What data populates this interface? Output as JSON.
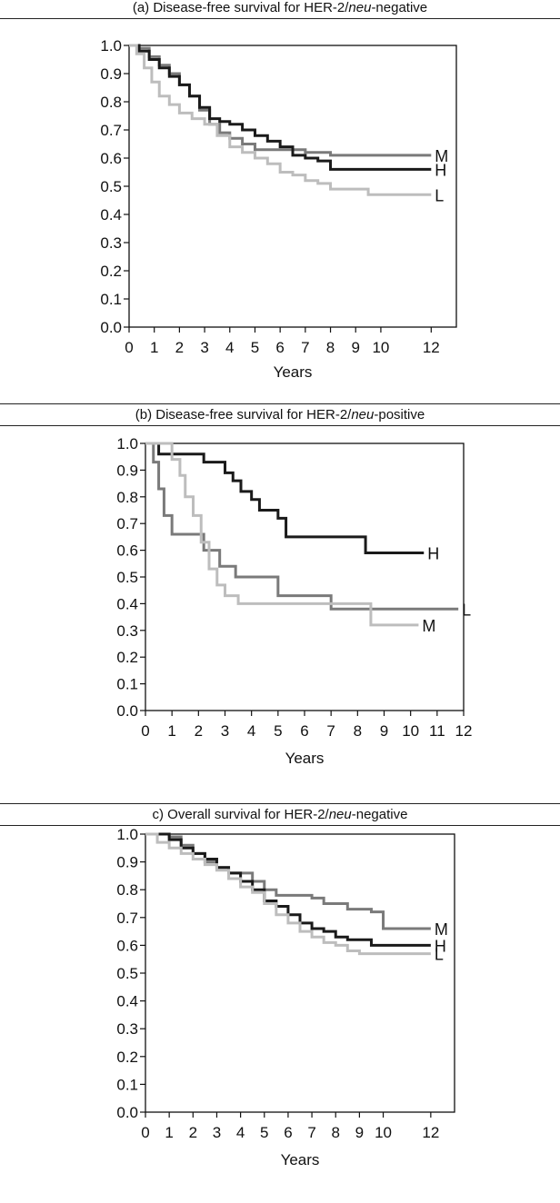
{
  "panels": [
    {
      "title_prefix": "(a) Disease-free survival for HER-2/",
      "title_italic": "neu",
      "title_suffix": "-negative"
    },
    {
      "title_prefix": "(b) Disease-free survival for HER-2/",
      "title_italic": "neu",
      "title_suffix": "-positive"
    },
    {
      "title_prefix": "c) Overall survival for HER-2/",
      "title_italic": "neu",
      "title_suffix": "-negative"
    }
  ],
  "chart_data": [
    {
      "type": "line",
      "title": "(a) Disease-free survival for HER-2/neu-negative",
      "xlabel": "Years",
      "ylabel": "",
      "xlim": [
        0,
        13
      ],
      "ylim": [
        0,
        1
      ],
      "x_ticks": [
        0,
        1,
        2,
        3,
        4,
        5,
        6,
        7,
        8,
        9,
        10,
        12
      ],
      "y_ticks": [
        0.0,
        0.1,
        0.2,
        0.3,
        0.4,
        0.5,
        0.6,
        0.7,
        0.8,
        0.9,
        1.0
      ],
      "colors": {
        "H": "#1a1a1a",
        "M": "#7a7a7a",
        "L": "#bdbdbd"
      },
      "series": [
        {
          "name": "M",
          "points": [
            [
              0,
              1.0
            ],
            [
              0.4,
              0.99
            ],
            [
              0.8,
              0.96
            ],
            [
              1.2,
              0.93
            ],
            [
              1.6,
              0.9
            ],
            [
              2.0,
              0.86
            ],
            [
              2.4,
              0.82
            ],
            [
              2.8,
              0.77
            ],
            [
              3.2,
              0.72
            ],
            [
              3.6,
              0.69
            ],
            [
              4.0,
              0.67
            ],
            [
              4.5,
              0.65
            ],
            [
              5.0,
              0.63
            ],
            [
              5.5,
              0.63
            ],
            [
              6.2,
              0.63
            ],
            [
              7.0,
              0.62
            ],
            [
              8.0,
              0.61
            ],
            [
              9.0,
              0.61
            ],
            [
              12.0,
              0.61
            ]
          ]
        },
        {
          "name": "H",
          "points": [
            [
              0,
              1.0
            ],
            [
              0.4,
              0.98
            ],
            [
              0.8,
              0.95
            ],
            [
              1.2,
              0.92
            ],
            [
              1.6,
              0.89
            ],
            [
              2.0,
              0.86
            ],
            [
              2.4,
              0.82
            ],
            [
              2.8,
              0.78
            ],
            [
              3.2,
              0.74
            ],
            [
              3.6,
              0.73
            ],
            [
              4.0,
              0.72
            ],
            [
              4.5,
              0.7
            ],
            [
              5.0,
              0.68
            ],
            [
              5.5,
              0.66
            ],
            [
              6.0,
              0.64
            ],
            [
              6.5,
              0.61
            ],
            [
              7.0,
              0.6
            ],
            [
              7.5,
              0.59
            ],
            [
              8.0,
              0.56
            ],
            [
              9.0,
              0.56
            ],
            [
              12.0,
              0.56
            ]
          ]
        },
        {
          "name": "L",
          "points": [
            [
              0,
              1.0
            ],
            [
              0.3,
              0.97
            ],
            [
              0.6,
              0.92
            ],
            [
              0.9,
              0.87
            ],
            [
              1.2,
              0.82
            ],
            [
              1.6,
              0.79
            ],
            [
              2.0,
              0.76
            ],
            [
              2.5,
              0.74
            ],
            [
              3.0,
              0.72
            ],
            [
              3.5,
              0.68
            ],
            [
              4.0,
              0.64
            ],
            [
              4.5,
              0.62
            ],
            [
              5.0,
              0.6
            ],
            [
              5.5,
              0.58
            ],
            [
              6.0,
              0.55
            ],
            [
              6.5,
              0.54
            ],
            [
              7.0,
              0.52
            ],
            [
              7.5,
              0.51
            ],
            [
              8.0,
              0.49
            ],
            [
              8.5,
              0.49
            ],
            [
              9.5,
              0.47
            ],
            [
              12.0,
              0.47
            ]
          ]
        }
      ]
    },
    {
      "type": "line",
      "title": "(b) Disease-free survival for HER-2/neu-positive",
      "xlabel": "Years",
      "ylabel": "",
      "xlim": [
        0,
        12
      ],
      "ylim": [
        0,
        1
      ],
      "x_ticks": [
        0,
        1,
        2,
        3,
        4,
        5,
        6,
        7,
        8,
        9,
        10,
        11,
        12
      ],
      "y_ticks": [
        0.0,
        0.1,
        0.2,
        0.3,
        0.4,
        0.5,
        0.6,
        0.7,
        0.8,
        0.9,
        1.0
      ],
      "colors": {
        "H": "#1a1a1a",
        "L": "#7a7a7a",
        "M": "#bdbdbd"
      },
      "series": [
        {
          "name": "H",
          "points": [
            [
              0,
              1.0
            ],
            [
              0.5,
              0.96
            ],
            [
              1.0,
              0.96
            ],
            [
              2.0,
              0.96
            ],
            [
              2.2,
              0.93
            ],
            [
              2.7,
              0.93
            ],
            [
              3.0,
              0.89
            ],
            [
              3.3,
              0.86
            ],
            [
              3.6,
              0.82
            ],
            [
              4.0,
              0.79
            ],
            [
              4.3,
              0.75
            ],
            [
              5.0,
              0.72
            ],
            [
              5.3,
              0.65
            ],
            [
              6.0,
              0.65
            ],
            [
              8.3,
              0.59
            ],
            [
              10.5,
              0.59
            ]
          ]
        },
        {
          "name": "L",
          "points": [
            [
              0,
              1.0
            ],
            [
              0.3,
              0.93
            ],
            [
              0.5,
              0.83
            ],
            [
              0.7,
              0.73
            ],
            [
              1.0,
              0.66
            ],
            [
              1.7,
              0.66
            ],
            [
              2.2,
              0.6
            ],
            [
              2.8,
              0.54
            ],
            [
              3.4,
              0.5
            ],
            [
              4.0,
              0.5
            ],
            [
              5.0,
              0.43
            ],
            [
              7.0,
              0.38
            ],
            [
              8.5,
              0.38
            ],
            [
              11.8,
              0.38
            ]
          ]
        },
        {
          "name": "M",
          "points": [
            [
              0,
              1.0
            ],
            [
              0.6,
              1.0
            ],
            [
              1.0,
              0.94
            ],
            [
              1.3,
              0.88
            ],
            [
              1.5,
              0.8
            ],
            [
              1.8,
              0.73
            ],
            [
              2.1,
              0.63
            ],
            [
              2.4,
              0.53
            ],
            [
              2.7,
              0.47
            ],
            [
              3.0,
              0.43
            ],
            [
              3.5,
              0.4
            ],
            [
              5.0,
              0.4
            ],
            [
              8.5,
              0.32
            ],
            [
              10.3,
              0.32
            ]
          ]
        }
      ]
    },
    {
      "type": "line",
      "title": "c) Overall survival for HER-2/neu-negative",
      "xlabel": "Years",
      "ylabel": "",
      "xlim": [
        0,
        13
      ],
      "ylim": [
        0,
        1
      ],
      "x_ticks": [
        0,
        1,
        2,
        3,
        4,
        5,
        6,
        7,
        8,
        9,
        10,
        12
      ],
      "y_ticks": [
        0.0,
        0.1,
        0.2,
        0.3,
        0.4,
        0.5,
        0.6,
        0.7,
        0.8,
        0.9,
        1.0
      ],
      "colors": {
        "H": "#1a1a1a",
        "M": "#7a7a7a",
        "L": "#bdbdbd"
      },
      "series": [
        {
          "name": "M",
          "points": [
            [
              0,
              1.0
            ],
            [
              1.0,
              0.99
            ],
            [
              1.5,
              0.96
            ],
            [
              2.0,
              0.93
            ],
            [
              2.5,
              0.9
            ],
            [
              3.0,
              0.88
            ],
            [
              3.5,
              0.86
            ],
            [
              4.0,
              0.86
            ],
            [
              4.5,
              0.83
            ],
            [
              5.0,
              0.8
            ],
            [
              5.5,
              0.78
            ],
            [
              6.0,
              0.78
            ],
            [
              7.0,
              0.77
            ],
            [
              7.5,
              0.75
            ],
            [
              8.5,
              0.73
            ],
            [
              9.5,
              0.72
            ],
            [
              10.0,
              0.66
            ],
            [
              12.0,
              0.66
            ]
          ]
        },
        {
          "name": "H",
          "points": [
            [
              0,
              1.0
            ],
            [
              1.0,
              0.98
            ],
            [
              1.5,
              0.95
            ],
            [
              2.0,
              0.93
            ],
            [
              2.5,
              0.91
            ],
            [
              3.0,
              0.88
            ],
            [
              3.5,
              0.86
            ],
            [
              4.0,
              0.83
            ],
            [
              4.5,
              0.8
            ],
            [
              5.0,
              0.76
            ],
            [
              5.5,
              0.74
            ],
            [
              6.0,
              0.71
            ],
            [
              6.5,
              0.68
            ],
            [
              7.0,
              0.66
            ],
            [
              7.5,
              0.65
            ],
            [
              8.0,
              0.63
            ],
            [
              8.5,
              0.62
            ],
            [
              9.5,
              0.6
            ],
            [
              12.0,
              0.6
            ]
          ]
        },
        {
          "name": "L",
          "points": [
            [
              0,
              1.0
            ],
            [
              0.5,
              0.97
            ],
            [
              1.0,
              0.95
            ],
            [
              1.5,
              0.93
            ],
            [
              2.0,
              0.91
            ],
            [
              2.5,
              0.89
            ],
            [
              3.0,
              0.87
            ],
            [
              3.5,
              0.84
            ],
            [
              4.0,
              0.81
            ],
            [
              4.5,
              0.79
            ],
            [
              5.0,
              0.75
            ],
            [
              5.5,
              0.71
            ],
            [
              6.0,
              0.68
            ],
            [
              6.5,
              0.65
            ],
            [
              7.0,
              0.63
            ],
            [
              7.5,
              0.61
            ],
            [
              8.0,
              0.6
            ],
            [
              8.5,
              0.58
            ],
            [
              9.0,
              0.57
            ],
            [
              12.0,
              0.57
            ]
          ]
        }
      ]
    }
  ]
}
